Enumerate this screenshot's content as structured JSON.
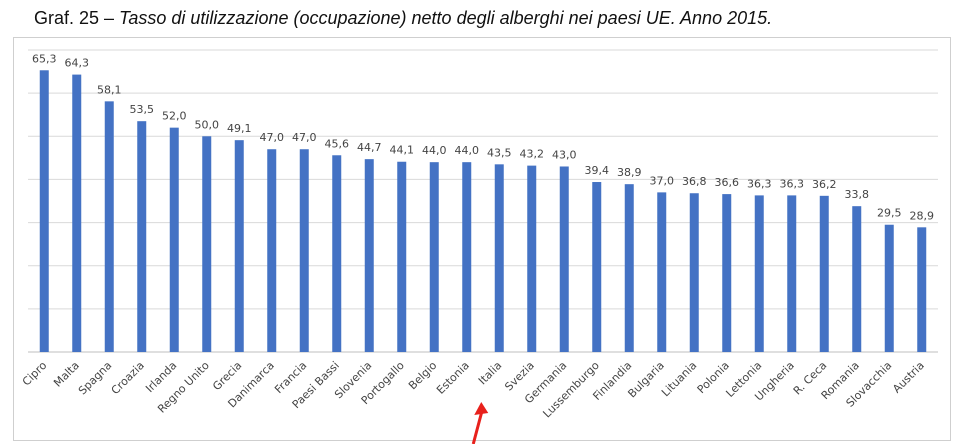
{
  "header": {
    "prefix": "Graf. 25 – ",
    "title": "Tasso di utilizzazione (occupazione) netto degli alberghi nei paesi UE. Anno 2015."
  },
  "colors": {
    "bar": "#4472c4",
    "arrow": "#e8211c"
  },
  "chart_data": {
    "type": "bar",
    "title": "Tasso di utilizzazione (occupazione) netto degli alberghi nei paesi UE. Anno 2015.",
    "xlabel": "",
    "ylabel": "",
    "ylim": [
      0,
      70
    ],
    "grid": true,
    "legend": "none",
    "categories": [
      "Cipro",
      "Malta",
      "Spagna",
      "Croazia",
      "Irlanda",
      "Regno Unito",
      "Grecia",
      "Danimarca",
      "Francia",
      "Paesi Bassi",
      "Slovenia",
      "Portogallo",
      "Belgio",
      "Estonia",
      "Italia",
      "Svezia",
      "Germania",
      "Lussemburgo",
      "Finlandia",
      "Bulgaria",
      "Lituania",
      "Polonia",
      "Lettonia",
      "Ungheria",
      "R. Ceca",
      "Romania",
      "Slovacchia",
      "Austria"
    ],
    "values": [
      65.3,
      64.3,
      58.1,
      53.5,
      52.0,
      50.0,
      49.1,
      47.0,
      47.0,
      45.6,
      44.7,
      44.1,
      44.0,
      44.0,
      43.5,
      43.2,
      43.0,
      39.4,
      38.9,
      37.0,
      36.8,
      36.6,
      36.3,
      36.3,
      36.2,
      33.8,
      29.5,
      28.9
    ],
    "value_labels": [
      "65,3",
      "64,3",
      "58,1",
      "53,5",
      "52,0",
      "50,0",
      "49,1",
      "47,0",
      "47,0",
      "45,6",
      "44,7",
      "44,1",
      "44,0",
      "44,0",
      "43,5",
      "43,2",
      "43,0",
      "39,4",
      "38,9",
      "37,0",
      "36,8",
      "36,6",
      "36,3",
      "36,3",
      "36,2",
      "33,8",
      "29,5",
      "28,9"
    ],
    "annotations": [
      {
        "type": "arrow",
        "points_to": "Italia",
        "color": "#e8211c"
      }
    ]
  }
}
